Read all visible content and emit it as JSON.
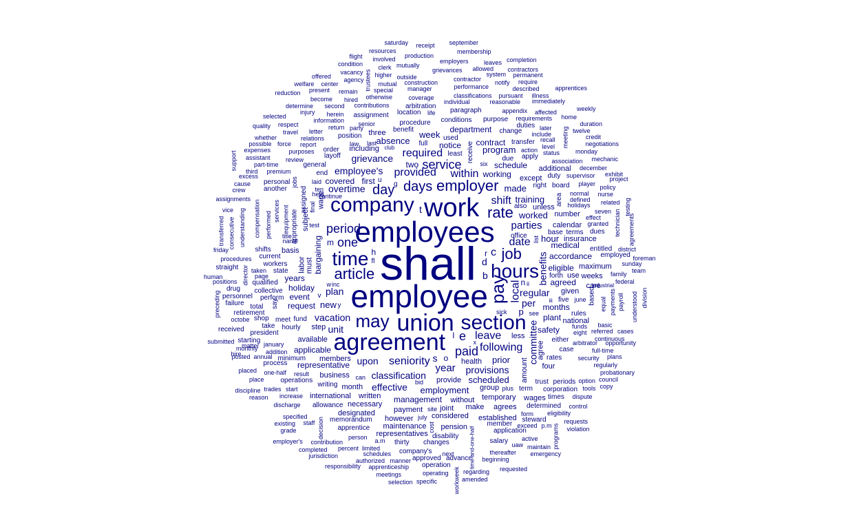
{
  "cloud": {
    "color": "#000080",
    "words": [
      "shall",
      "employee",
      "employees",
      "work",
      "agreement",
      "union",
      "company",
      "section",
      "may",
      "time",
      "hours",
      "article",
      "pay",
      "job",
      "employer",
      "days",
      "rate",
      "period",
      "service",
      "day",
      "one",
      "paid",
      "provided",
      "local",
      "date",
      "leave",
      "seniority",
      "following",
      "required",
      "shift",
      "parties",
      "plan",
      "vacation",
      "regular",
      "within",
      "grievance",
      "benefits",
      "employee's",
      "upon",
      "year",
      "per",
      "effective",
      "classification",
      "provisions",
      "overtime",
      "scheduled",
      "new",
      "hour",
      "worked",
      "made",
      "agreed",
      "accordance",
      "committee",
      "unit",
      "training",
      "program",
      "department",
      "week",
      "employment",
      "applicable",
      "request",
      "holiday",
      "event",
      "years",
      "eligible",
      "medical",
      "months",
      "plant",
      "safety",
      "prior",
      "management",
      "working",
      "contract",
      "absence",
      "notice",
      "bargaining",
      "labor",
      "must",
      "subject",
      "business",
      "covered",
      "first",
      "two",
      "schedule",
      "except",
      "representative",
      "available",
      "members",
      "month",
      "written",
      "international",
      "necessary",
      "designated",
      "payment",
      "however",
      "considered",
      "pension",
      "maintenance",
      "representatives",
      "health",
      "group",
      "temporary",
      "wages",
      "determined",
      "make",
      "agrees",
      "established",
      "member",
      "application",
      "without",
      "provide",
      "joint",
      "calendar",
      "number",
      "additional",
      "insurance",
      "maximum",
      "weeks",
      "care",
      "rules",
      "national",
      "based",
      "entitled",
      "employed",
      "basis",
      "current",
      "workers",
      "state",
      "qualified",
      "collective",
      "perform",
      "fund",
      "step",
      "hourly",
      "starting",
      "president",
      "received",
      "shop",
      "total",
      "retirement",
      "failure",
      "personnel",
      "drug",
      "positions",
      "human",
      "straight",
      "procedures",
      "friday",
      "shifts",
      "consecutive",
      "transferred",
      "vice",
      "assignments",
      "crew",
      "cause",
      "excess",
      "third",
      "support",
      "assistant",
      "expenses",
      "possible",
      "whether",
      "quality",
      "selected",
      "determine",
      "reduction",
      "welfare",
      "offered",
      "vacancy",
      "condition",
      "flight",
      "resources",
      "saturday",
      "receipt",
      "september",
      "membership",
      "production",
      "involved",
      "mutually",
      "clerk",
      "employers",
      "leaves",
      "completion",
      "allowed",
      "contractors",
      "system",
      "permanent",
      "grievances",
      "higher",
      "outside",
      "mutual",
      "construction",
      "contractor",
      "notify",
      "require",
      "agency",
      "center",
      "trustees",
      "present",
      "remain",
      "special",
      "manager",
      "performance",
      "described",
      "apprentices",
      "hired",
      "otherwise",
      "coverage",
      "classifications",
      "pursuant",
      "illness",
      "immediately",
      "become",
      "second",
      "contributions",
      "individual",
      "reasonable",
      "arbitration",
      "location",
      "life",
      "paragraph",
      "appendix",
      "affected",
      "weekly",
      "injury",
      "herein",
      "assignment",
      "senior",
      "conditions",
      "purpose",
      "requirements",
      "home",
      "information",
      "procedure",
      "duties",
      "later",
      "duration",
      "respect",
      "return",
      "party",
      "benefit",
      "change",
      "include",
      "twelve",
      "travel",
      "letter",
      "three",
      "position",
      "used",
      "transfer",
      "recall",
      "meeting",
      "credit",
      "relations",
      "last",
      "full",
      "level",
      "negotiations",
      "force",
      "report",
      "law",
      "including",
      "club",
      "action",
      "status",
      "monday",
      "purposes",
      "order",
      "least",
      "due",
      "apply",
      "association",
      "mechanic",
      "review",
      "layoff",
      "six",
      "december",
      "part-time",
      "general",
      "receive",
      "duty",
      "supervisor",
      "exhibit",
      "premium",
      "end",
      "personal",
      "ten",
      "wage",
      "board",
      "right",
      "player",
      "policy",
      "project",
      "laid",
      "jobs",
      "held",
      "continue",
      "normal",
      "nurse",
      "another",
      "area",
      "defined",
      "related",
      "assigned",
      "final",
      "unless",
      "also",
      "holidays",
      "testing",
      "compensation",
      "services",
      "equipment",
      "appropriate",
      "seven",
      "effect",
      "technician",
      "understanding",
      "performed",
      "office",
      "list",
      "base",
      "terms",
      "granted",
      "agreements",
      "test",
      "dues",
      "district",
      "title",
      "name",
      "foreman",
      "sunday",
      "team",
      "sick",
      "family",
      "federal",
      "forth",
      "use",
      "director",
      "taken",
      "page",
      "matter",
      "submitted",
      "hire",
      "process",
      "monthly",
      "posted",
      "addition",
      "january",
      "annual",
      "minimum",
      "placed",
      "one-half",
      "place",
      "result",
      "operations",
      "discipline",
      "trades",
      "start",
      "reason",
      "increase",
      "discharge",
      "allowance",
      "specified",
      "staff",
      "existing",
      "grade",
      "employer's",
      "memorandum",
      "apprentice",
      "decision",
      "contribution",
      "completed",
      "percent",
      "jurisdiction",
      "limited",
      "person",
      "thirty",
      "authorized",
      "schedules",
      "manner",
      "responsibility",
      "apprenticeship",
      "meetings",
      "selection",
      "specific",
      "company's",
      "approved",
      "changes",
      "cost",
      "disability",
      "next",
      "advance",
      "operation",
      "operating",
      "regarding",
      "amended",
      "requested",
      "beginning",
      "thereafter",
      "salary",
      "maintain",
      "uaw",
      "emergency",
      "active",
      "exceed",
      "p.m",
      "steward",
      "form",
      "eligibility",
      "programs",
      "requests",
      "violation",
      "control",
      "dispute",
      "times",
      "corporation",
      "tools",
      "copy",
      "periods",
      "option",
      "council",
      "trust",
      "probationary",
      "plus",
      "term",
      "site",
      "july",
      "writing",
      "bid",
      "can",
      "a.m",
      "rates",
      "four",
      "case",
      "either",
      "security",
      "full-time",
      "regularly",
      "plans",
      "opportunity",
      "continuous",
      "cases",
      "referred",
      "funds",
      "basic",
      "eight",
      "arbitrator",
      "agree",
      "amount",
      "less",
      "see",
      "five",
      "june",
      "equal",
      "payments",
      "payroll",
      "understood",
      "division",
      "given",
      "iii",
      "industrial",
      "meet",
      "octobe",
      "take",
      "say",
      "preceding",
      "r",
      "c",
      "d",
      "e",
      "s",
      "o",
      "p",
      "m",
      "u",
      "g",
      "t",
      "h",
      "b",
      "l",
      "n",
      "y",
      "x",
      "ii",
      "v",
      "fl",
      "w",
      "inc",
      "workweek",
      "time-and-one-half"
    ]
  }
}
